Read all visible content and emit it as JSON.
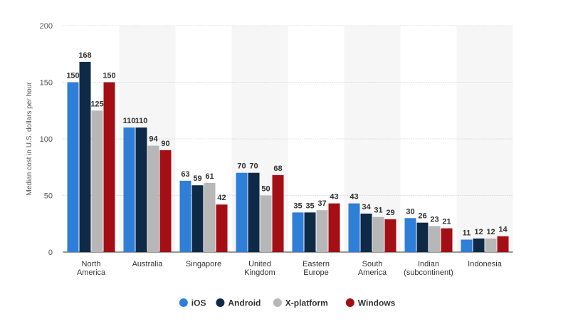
{
  "chart_data": {
    "type": "bar",
    "y_axis_label": "Median cost in U.S. dollars per hour",
    "categories": [
      "North America",
      "Australia",
      "Singapore",
      "United Kingdom",
      "Eastern Europe",
      "South America",
      "Indian (subcontinent)",
      "Indonesia"
    ],
    "series": [
      {
        "name": "iOS",
        "color": "#2f7ed8",
        "values": [
          150,
          110,
          63,
          70,
          35,
          43,
          30,
          11
        ]
      },
      {
        "name": "Android",
        "color": "#0e2a47",
        "values": [
          168,
          110,
          59,
          70,
          35,
          34,
          26,
          12
        ]
      },
      {
        "name": "X-platform",
        "color": "#b7b7b7",
        "values": [
          125,
          94,
          61,
          50,
          37,
          31,
          23,
          12
        ]
      },
      {
        "name": "Windows",
        "color": "#a30f15",
        "values": [
          150,
          90,
          42,
          68,
          43,
          29,
          21,
          14
        ]
      }
    ],
    "ylim": [
      0,
      200
    ],
    "yticks": [
      0,
      50,
      100,
      150,
      200
    ],
    "grid": true
  }
}
